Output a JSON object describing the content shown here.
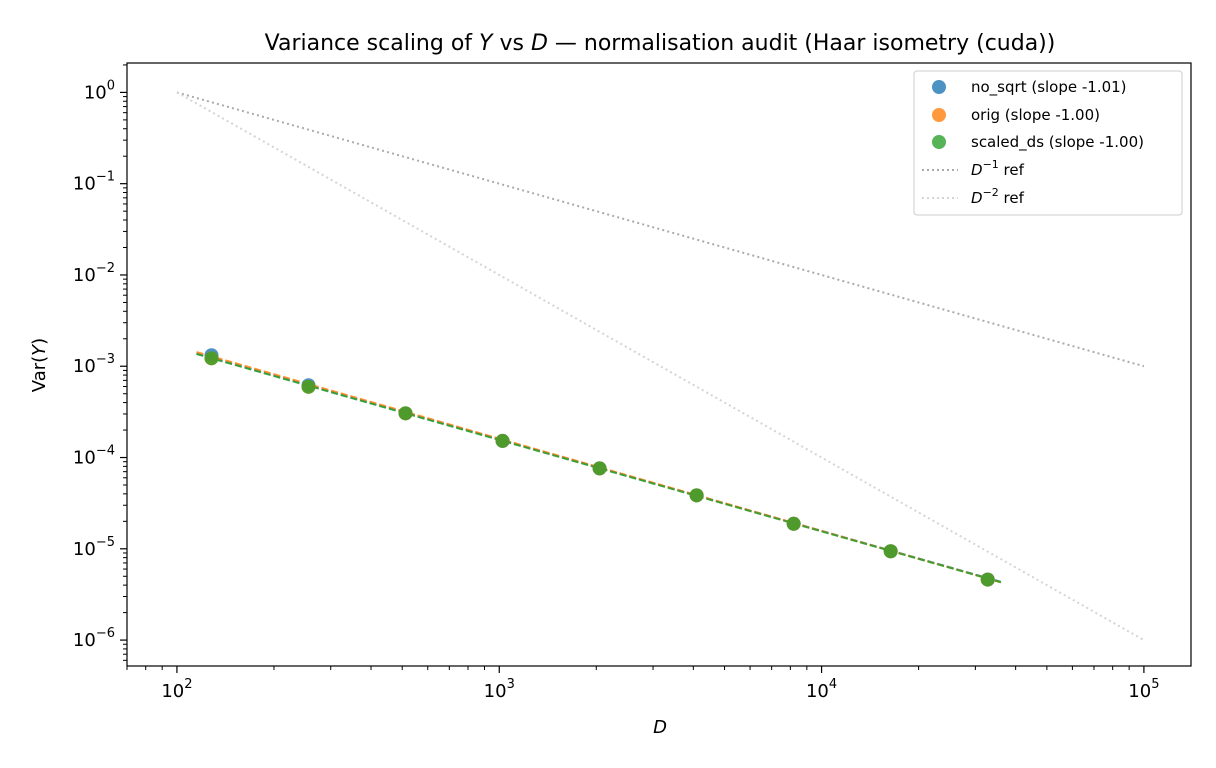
{
  "chart_data": {
    "type": "scatter",
    "title_parts": [
      "Variance scaling of ",
      "Y",
      " vs ",
      "D",
      " — normalisation audit (Haar isometry (cuda))"
    ],
    "xlabel": "D",
    "ylabel_parts": [
      "Var(",
      "Y",
      ")"
    ],
    "xscale": "log",
    "yscale": "log",
    "xlim": [
      70,
      140000
    ],
    "ylim": [
      5.2e-07,
      2.1
    ],
    "grid": false,
    "legend_position": "top-right",
    "x_ticks": [
      {
        "value": 100,
        "base": "10",
        "exp": "2"
      },
      {
        "value": 1000,
        "base": "10",
        "exp": "3"
      },
      {
        "value": 10000,
        "base": "10",
        "exp": "4"
      },
      {
        "value": 100000,
        "base": "10",
        "exp": "5"
      }
    ],
    "y_ticks": [
      {
        "value": 1,
        "base": "10",
        "exp": "0"
      },
      {
        "value": 0.1,
        "base": "10",
        "exp": "−1"
      },
      {
        "value": 0.01,
        "base": "10",
        "exp": "−2"
      },
      {
        "value": 0.001,
        "base": "10",
        "exp": "−3"
      },
      {
        "value": 0.0001,
        "base": "10",
        "exp": "−4"
      },
      {
        "value": 1e-05,
        "base": "10",
        "exp": "−5"
      },
      {
        "value": 1e-06,
        "base": "10",
        "exp": "−6"
      }
    ],
    "series": [
      {
        "name": "no_sqrt (slope -1.01)",
        "color": "#1f77b4",
        "x": [
          128,
          256,
          512,
          1024,
          2048,
          4096,
          8192,
          16384,
          32768
        ],
        "y": [
          0.00132,
          0.00062,
          0.000305,
          0.000152,
          7.6e-05,
          3.85e-05,
          1.88e-05,
          9.4e-06,
          4.6e-06
        ],
        "fit": {
          "x": [
            115,
            36000
          ],
          "y": [
            0.00138,
            4.35e-06
          ]
        }
      },
      {
        "name": "orig (slope -1.00)",
        "color": "#ff7f0e",
        "x": [
          128,
          256,
          512,
          1024,
          2048,
          4096,
          8192,
          16384,
          32768
        ],
        "y": [
          0.00122,
          0.000595,
          0.000305,
          0.000152,
          7.6e-05,
          3.85e-05,
          1.88e-05,
          9.4e-06,
          4.6e-06
        ],
        "fit": {
          "x": [
            115,
            36000
          ],
          "y": [
            0.00143,
            4.3e-06
          ]
        }
      },
      {
        "name": "scaled_ds (slope -1.00)",
        "color": "#2ca02c",
        "x": [
          128,
          256,
          512,
          1024,
          2048,
          4096,
          8192,
          16384,
          32768
        ],
        "y": [
          0.00122,
          0.000595,
          0.000305,
          0.000152,
          7.6e-05,
          3.85e-05,
          1.88e-05,
          9.4e-06,
          4.6e-06
        ],
        "fit": {
          "x": [
            115,
            36000
          ],
          "y": [
            0.00136,
            4.3e-06
          ]
        }
      }
    ],
    "reference_lines": [
      {
        "name_base": "D",
        "name_exp": "−1",
        "name_suffix": " ref",
        "color": "#aaaaaa",
        "x": [
          100,
          100000
        ],
        "y": [
          1,
          0.001
        ]
      },
      {
        "name_base": "D",
        "name_exp": "−2",
        "name_suffix": " ref",
        "color": "#d4d4d4",
        "x": [
          100,
          100000
        ],
        "y": [
          1,
          1e-06
        ]
      }
    ]
  }
}
